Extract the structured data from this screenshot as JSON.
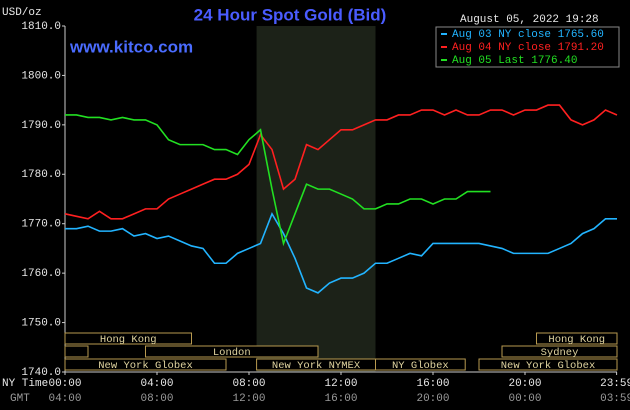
{
  "chart_data": {
    "type": "line",
    "title": "24 Hour Spot Gold (Bid)",
    "y_unit_label": "USD/oz",
    "watermark": "www.kitco.com",
    "timestamp": "August 05, 2022 19:28",
    "x": [
      0,
      0.5,
      1,
      1.5,
      2,
      2.5,
      3,
      3.5,
      4,
      4.5,
      5,
      5.5,
      6,
      6.5,
      7,
      7.5,
      8,
      8.5,
      9,
      9.5,
      10,
      10.5,
      11,
      11.5,
      12,
      12.5,
      13,
      13.5,
      14,
      14.5,
      15,
      15.5,
      16,
      16.5,
      17,
      17.5,
      18,
      18.5,
      19,
      19.5,
      20,
      20.5,
      21,
      21.5,
      22,
      22.5,
      23,
      23.5,
      24
    ],
    "series": [
      {
        "name": "Aug 03 NY close 1765.60",
        "color": "#22b4ff",
        "values": [
          1769,
          1769,
          1769.5,
          1768.5,
          1768.5,
          1769,
          1767.5,
          1768,
          1767,
          1767.5,
          1766.5,
          1765.5,
          1765,
          1762,
          1762,
          1764,
          1765,
          1766,
          1772,
          1768,
          1763,
          1757,
          1756,
          1758,
          1759,
          1759,
          1760,
          1762,
          1762,
          1763,
          1764,
          1763.5,
          1766,
          1766,
          1766,
          1766,
          1766,
          1765.5,
          1765,
          1764,
          1764,
          1764,
          1764,
          1765,
          1766,
          1768,
          1769,
          1771,
          1771
        ]
      },
      {
        "name": "Aug 04 NY close 1791.20",
        "color": "#ff2020",
        "values": [
          1772,
          1771.5,
          1771,
          1772.5,
          1771,
          1771,
          1772,
          1773,
          1773,
          1775,
          1776,
          1777,
          1778,
          1779,
          1779,
          1780,
          1782,
          1788,
          1785,
          1777,
          1779,
          1786,
          1785,
          1787,
          1789,
          1789,
          1790,
          1791,
          1791,
          1792,
          1792,
          1793,
          1793,
          1792,
          1793,
          1792,
          1792,
          1793,
          1793,
          1792,
          1793,
          1793,
          1794,
          1794,
          1791,
          1790,
          1791,
          1793,
          1792
        ]
      },
      {
        "name": "Aug 05 Last 1776.40",
        "color": "#22e022",
        "values": [
          1792,
          1792,
          1791.5,
          1791.5,
          1791,
          1791.5,
          1791,
          1791,
          1790,
          1787,
          1786,
          1786,
          1786,
          1785,
          1785,
          1784,
          1787,
          1789,
          1777,
          1766,
          1772,
          1778,
          1777,
          1777,
          1776,
          1775,
          1773,
          1773,
          1774,
          1774,
          1775,
          1775,
          1774,
          1775,
          1775,
          1776.5,
          1776.5,
          1776.5,
          null,
          null,
          null,
          null,
          null,
          null,
          null,
          null,
          null,
          null,
          null
        ]
      }
    ],
    "xlim": [
      0,
      24
    ],
    "ylim": [
      1740,
      1810
    ],
    "xticks": [
      {
        "value": 0,
        "label": "00:00"
      },
      {
        "value": 4,
        "label": "04:00"
      },
      {
        "value": 8,
        "label": "08:00"
      },
      {
        "value": 12,
        "label": "12:00"
      },
      {
        "value": 16,
        "label": "16:00"
      },
      {
        "value": 20,
        "label": "20:00"
      },
      {
        "value": 23.983,
        "label": "23:59"
      }
    ],
    "gmt_labels": [
      "04:00",
      "08:00",
      "12:00",
      "16:00",
      "20:00",
      "00:00",
      "03:59"
    ],
    "x_row_labels": [
      "NY Time",
      "GMT"
    ],
    "yticks": [
      {
        "value": 1740,
        "label": "1740.0"
      },
      {
        "value": 1750,
        "label": "1750.0"
      },
      {
        "value": 1760,
        "label": "1760.0"
      },
      {
        "value": 1770,
        "label": "1770.0"
      },
      {
        "value": 1780,
        "label": "1780.0"
      },
      {
        "value": 1790,
        "label": "1790.0"
      },
      {
        "value": 1800,
        "label": "1800.0"
      },
      {
        "value": 1810,
        "label": "1810.0"
      }
    ],
    "highlight": {
      "start": 8.33,
      "end": 13.5
    },
    "sessions": [
      {
        "name": "Hong Kong",
        "row": 0,
        "start": 0,
        "end": 5.5
      },
      {
        "name": "Hong Kong",
        "row": 0,
        "start": 20.5,
        "end": 24
      },
      {
        "name": null,
        "row": 1,
        "start": 0,
        "end": 1
      },
      {
        "name": "London",
        "row": 1,
        "start": 3.5,
        "end": 11
      },
      {
        "name": "Sydney",
        "row": 1,
        "start": 19,
        "end": 24
      },
      {
        "name": "New York Globex",
        "row": 2,
        "start": 0,
        "end": 7
      },
      {
        "name": "New York NYMEX",
        "row": 2,
        "start": 8.33,
        "end": 13.5
      },
      {
        "name": "NY Globex",
        "row": 2,
        "start": 13.5,
        "end": 17.4
      },
      {
        "name": "New York Globex",
        "row": 2,
        "start": 18,
        "end": 24
      }
    ]
  }
}
